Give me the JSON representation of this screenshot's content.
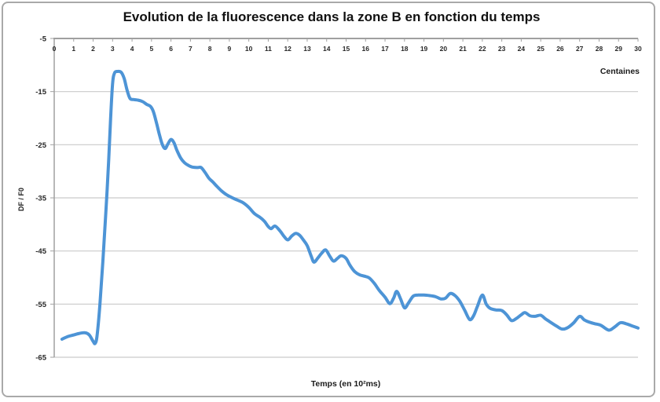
{
  "chart_data": {
    "type": "line",
    "title": "Evolution de la fluorescence dans la zone B en fonction du temps",
    "xlabel": "Temps (en 10²ms)",
    "ylabel": "DF / F0",
    "x_unit_note": "Centaines",
    "xlim": [
      0,
      30
    ],
    "ylim": [
      -65,
      -5
    ],
    "x_ticks": [
      0,
      1,
      2,
      3,
      4,
      5,
      6,
      7,
      8,
      9,
      10,
      11,
      12,
      13,
      14,
      15,
      16,
      17,
      18,
      19,
      20,
      21,
      22,
      23,
      24,
      25,
      26,
      27,
      28,
      29,
      30
    ],
    "y_ticks": [
      -5,
      -15,
      -25,
      -35,
      -45,
      -55,
      -65
    ],
    "grid": "horizontal",
    "legend": "none",
    "colors": {
      "line": "#4d94d6",
      "grid": "#c9c9c9",
      "axis": "#a0a0a0",
      "text": "#1a1a1a"
    },
    "series": [
      {
        "name": "DF/F0",
        "points": [
          [
            0.4,
            -61.6
          ],
          [
            0.7,
            -61.1
          ],
          [
            1.0,
            -60.8
          ],
          [
            1.3,
            -60.5
          ],
          [
            1.6,
            -60.4
          ],
          [
            1.8,
            -60.8
          ],
          [
            2.0,
            -62.0
          ],
          [
            2.1,
            -62.4
          ],
          [
            2.2,
            -61.0
          ],
          [
            2.35,
            -55.0
          ],
          [
            2.5,
            -47.0
          ],
          [
            2.65,
            -38.0
          ],
          [
            2.8,
            -28.0
          ],
          [
            2.9,
            -20.0
          ],
          [
            3.0,
            -13.5
          ],
          [
            3.1,
            -11.5
          ],
          [
            3.25,
            -11.2
          ],
          [
            3.45,
            -11.4
          ],
          [
            3.6,
            -12.6
          ],
          [
            3.75,
            -14.8
          ],
          [
            3.9,
            -16.3
          ],
          [
            4.1,
            -16.5
          ],
          [
            4.3,
            -16.6
          ],
          [
            4.55,
            -16.9
          ],
          [
            4.75,
            -17.4
          ],
          [
            4.95,
            -17.8
          ],
          [
            5.1,
            -18.8
          ],
          [
            5.25,
            -20.8
          ],
          [
            5.4,
            -23.0
          ],
          [
            5.55,
            -24.9
          ],
          [
            5.7,
            -25.7
          ],
          [
            5.85,
            -24.8
          ],
          [
            6.0,
            -24.0
          ],
          [
            6.15,
            -24.6
          ],
          [
            6.3,
            -26.0
          ],
          [
            6.5,
            -27.5
          ],
          [
            6.7,
            -28.4
          ],
          [
            6.9,
            -28.9
          ],
          [
            7.1,
            -29.2
          ],
          [
            7.35,
            -29.3
          ],
          [
            7.55,
            -29.3
          ],
          [
            7.75,
            -30.2
          ],
          [
            7.95,
            -31.3
          ],
          [
            8.15,
            -32.0
          ],
          [
            8.35,
            -32.8
          ],
          [
            8.6,
            -33.7
          ],
          [
            8.85,
            -34.4
          ],
          [
            9.1,
            -34.9
          ],
          [
            9.4,
            -35.4
          ],
          [
            9.7,
            -35.9
          ],
          [
            10.0,
            -36.8
          ],
          [
            10.3,
            -38.0
          ],
          [
            10.55,
            -38.6
          ],
          [
            10.8,
            -39.4
          ],
          [
            11.0,
            -40.4
          ],
          [
            11.15,
            -40.8
          ],
          [
            11.35,
            -40.3
          ],
          [
            11.6,
            -41.2
          ],
          [
            11.8,
            -42.2
          ],
          [
            12.0,
            -42.9
          ],
          [
            12.2,
            -42.2
          ],
          [
            12.4,
            -41.7
          ],
          [
            12.6,
            -42.0
          ],
          [
            12.8,
            -42.9
          ],
          [
            13.0,
            -44.0
          ],
          [
            13.2,
            -45.9
          ],
          [
            13.35,
            -47.1
          ],
          [
            13.55,
            -46.3
          ],
          [
            13.75,
            -45.4
          ],
          [
            13.95,
            -44.8
          ],
          [
            14.15,
            -45.9
          ],
          [
            14.35,
            -46.9
          ],
          [
            14.55,
            -46.4
          ],
          [
            14.75,
            -45.9
          ],
          [
            15.0,
            -46.4
          ],
          [
            15.2,
            -47.7
          ],
          [
            15.45,
            -48.9
          ],
          [
            15.7,
            -49.5
          ],
          [
            16.0,
            -49.8
          ],
          [
            16.2,
            -50.1
          ],
          [
            16.45,
            -51.1
          ],
          [
            16.7,
            -52.4
          ],
          [
            17.0,
            -53.7
          ],
          [
            17.25,
            -54.9
          ],
          [
            17.45,
            -53.8
          ],
          [
            17.6,
            -52.6
          ],
          [
            17.8,
            -54.0
          ],
          [
            18.0,
            -55.7
          ],
          [
            18.2,
            -54.8
          ],
          [
            18.45,
            -53.5
          ],
          [
            18.7,
            -53.3
          ],
          [
            19.0,
            -53.3
          ],
          [
            19.3,
            -53.4
          ],
          [
            19.6,
            -53.6
          ],
          [
            19.85,
            -54.0
          ],
          [
            20.1,
            -53.9
          ],
          [
            20.35,
            -53.0
          ],
          [
            20.6,
            -53.4
          ],
          [
            20.85,
            -54.5
          ],
          [
            21.1,
            -56.2
          ],
          [
            21.35,
            -57.9
          ],
          [
            21.55,
            -57.2
          ],
          [
            21.75,
            -55.4
          ],
          [
            22.0,
            -53.3
          ],
          [
            22.2,
            -55.0
          ],
          [
            22.4,
            -55.8
          ],
          [
            22.7,
            -56.1
          ],
          [
            23.0,
            -56.2
          ],
          [
            23.25,
            -57.0
          ],
          [
            23.5,
            -58.1
          ],
          [
            23.75,
            -57.7
          ],
          [
            24.0,
            -57.0
          ],
          [
            24.2,
            -56.6
          ],
          [
            24.45,
            -57.2
          ],
          [
            24.7,
            -57.3
          ],
          [
            25.0,
            -57.1
          ],
          [
            25.25,
            -57.8
          ],
          [
            25.5,
            -58.4
          ],
          [
            25.8,
            -59.1
          ],
          [
            26.1,
            -59.7
          ],
          [
            26.4,
            -59.4
          ],
          [
            26.7,
            -58.5
          ],
          [
            27.0,
            -57.3
          ],
          [
            27.25,
            -58.0
          ],
          [
            27.5,
            -58.4
          ],
          [
            27.8,
            -58.7
          ],
          [
            28.1,
            -59.0
          ],
          [
            28.5,
            -59.9
          ],
          [
            28.8,
            -59.3
          ],
          [
            29.1,
            -58.5
          ],
          [
            29.4,
            -58.7
          ],
          [
            29.7,
            -59.1
          ],
          [
            30.0,
            -59.5
          ]
        ]
      }
    ]
  }
}
